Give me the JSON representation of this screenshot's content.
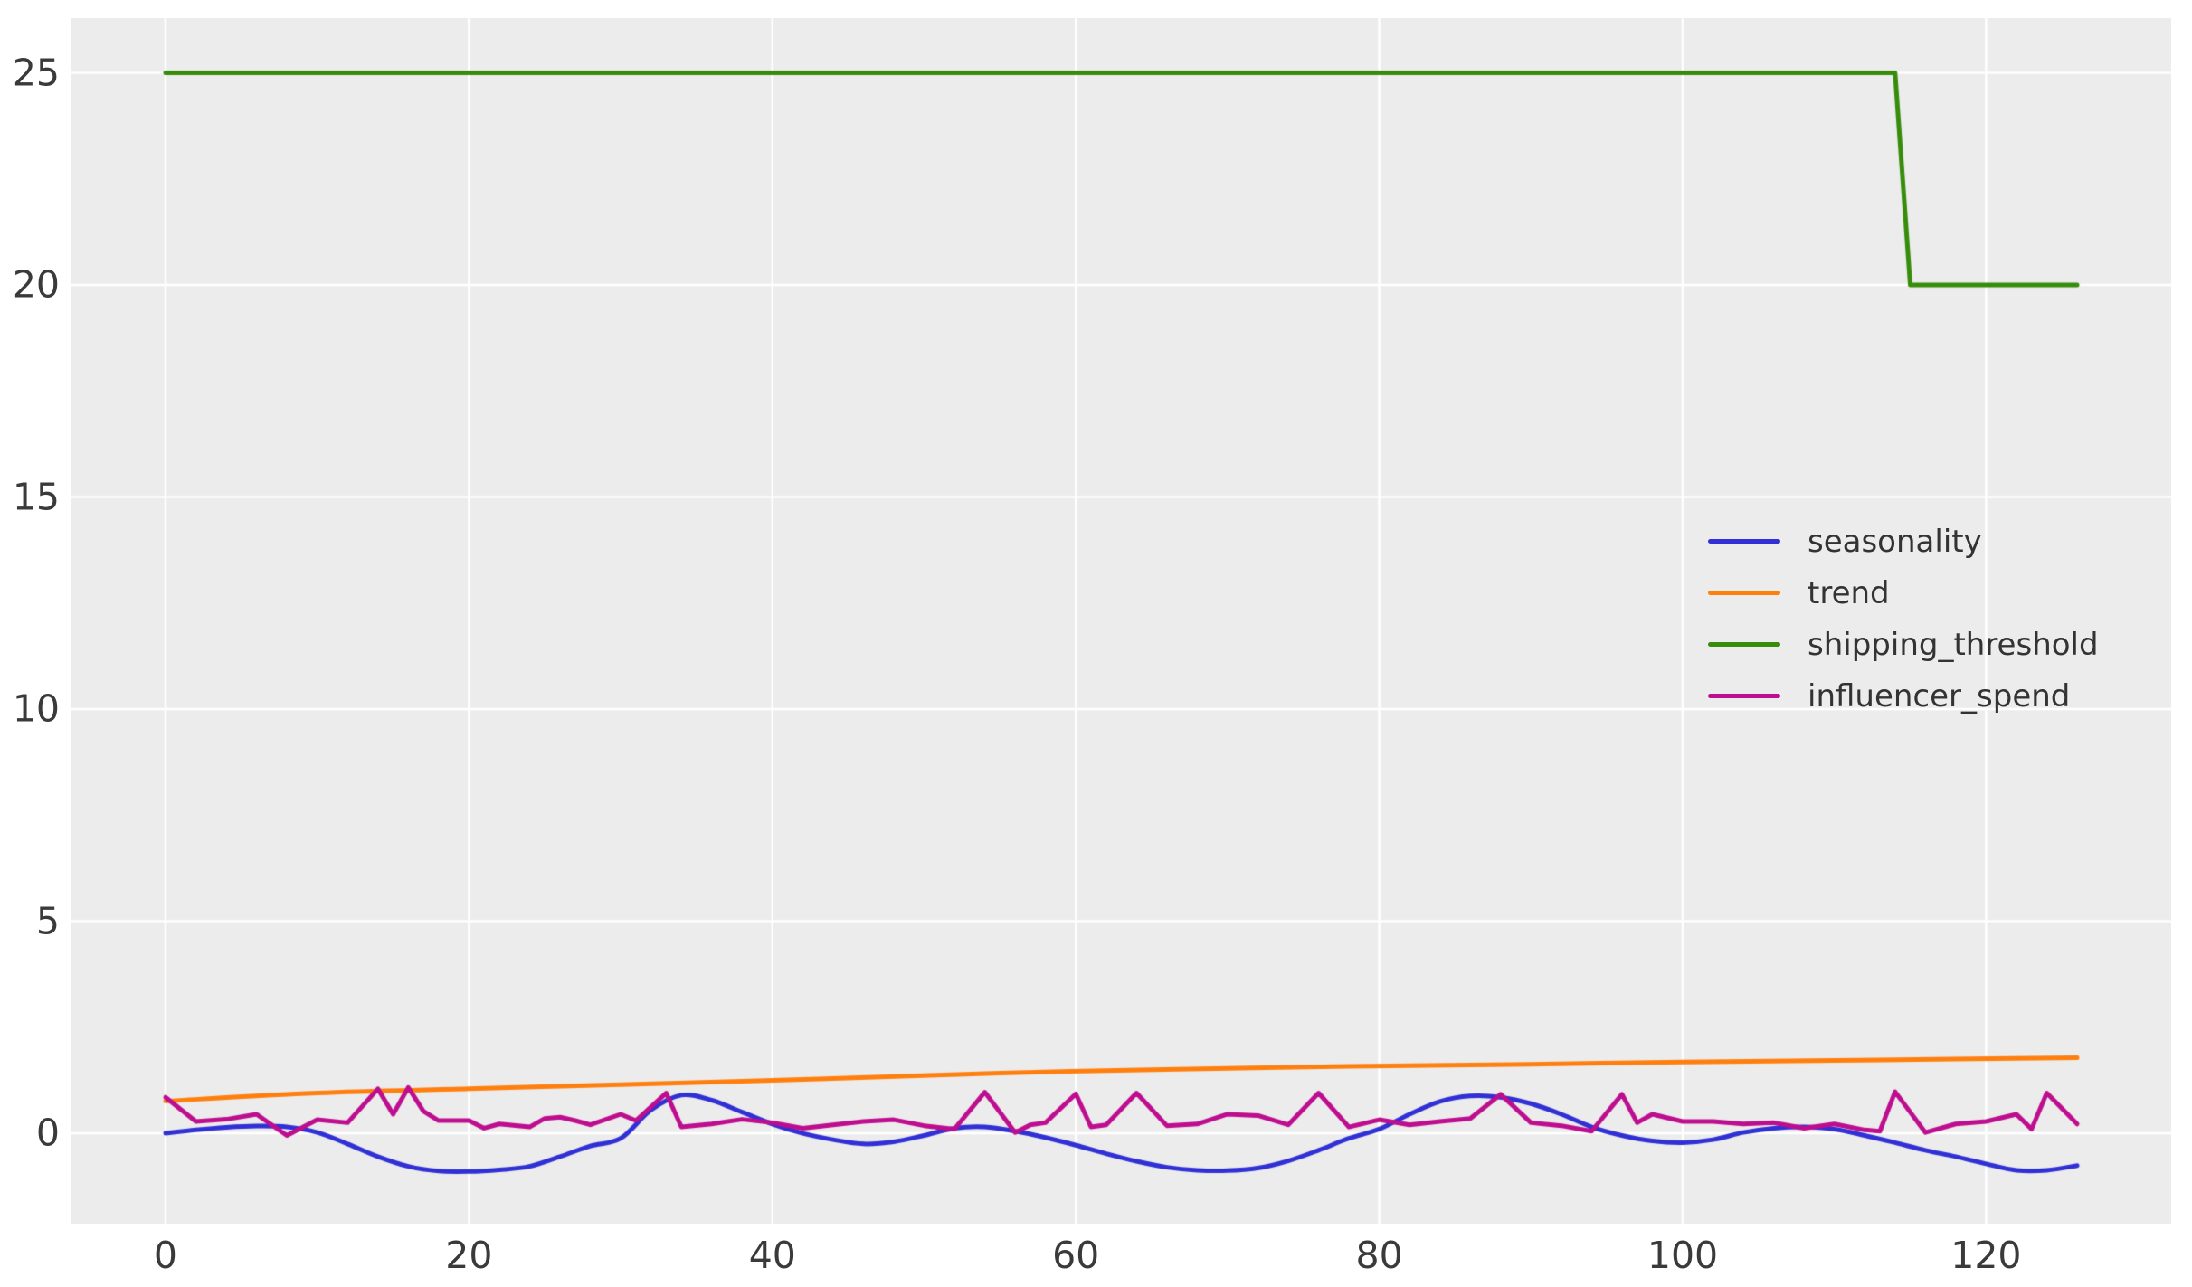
{
  "figure": {
    "background": "#ffffff"
  },
  "axes": {
    "background": "#ececec",
    "grid_color": "#ffffff",
    "grid_linewidth": 2.5,
    "tick_color": "#3a3a3a",
    "line_width": 5
  },
  "chart_data": {
    "type": "line",
    "title": "",
    "xlabel": "",
    "ylabel": "",
    "grid": true,
    "legend_position": "center right",
    "xlim": [
      -6.26,
      132.2
    ],
    "ylim": [
      -2.13,
      26.29
    ],
    "xticks": [
      0,
      20,
      40,
      60,
      80,
      100,
      120
    ],
    "yticks": [
      0,
      5,
      10,
      15,
      20,
      25
    ],
    "series": [
      {
        "name": "seasonality",
        "color": "#3030d6",
        "smooth": true,
        "points": [
          [
            0,
            0.0
          ],
          [
            2,
            0.08
          ],
          [
            4,
            0.14
          ],
          [
            6,
            0.17
          ],
          [
            8,
            0.15
          ],
          [
            10,
            0.02
          ],
          [
            12,
            -0.25
          ],
          [
            14,
            -0.55
          ],
          [
            16,
            -0.78
          ],
          [
            18,
            -0.89
          ],
          [
            20,
            -0.9
          ],
          [
            22,
            -0.86
          ],
          [
            24,
            -0.78
          ],
          [
            26,
            -0.55
          ],
          [
            28,
            -0.3
          ],
          [
            30,
            -0.12
          ],
          [
            32,
            0.55
          ],
          [
            34,
            0.9
          ],
          [
            36,
            0.78
          ],
          [
            38,
            0.5
          ],
          [
            40,
            0.22
          ],
          [
            42,
            0.0
          ],
          [
            44,
            -0.15
          ],
          [
            46,
            -0.25
          ],
          [
            48,
            -0.2
          ],
          [
            50,
            -0.05
          ],
          [
            52,
            0.12
          ],
          [
            54,
            0.15
          ],
          [
            56,
            0.05
          ],
          [
            58,
            -0.1
          ],
          [
            60,
            -0.28
          ],
          [
            62,
            -0.48
          ],
          [
            64,
            -0.66
          ],
          [
            66,
            -0.8
          ],
          [
            68,
            -0.87
          ],
          [
            70,
            -0.88
          ],
          [
            72,
            -0.82
          ],
          [
            74,
            -0.65
          ],
          [
            76,
            -0.4
          ],
          [
            78,
            -0.12
          ],
          [
            80,
            0.1
          ],
          [
            82,
            0.45
          ],
          [
            84,
            0.75
          ],
          [
            86,
            0.88
          ],
          [
            88,
            0.85
          ],
          [
            90,
            0.7
          ],
          [
            92,
            0.45
          ],
          [
            94,
            0.15
          ],
          [
            96,
            -0.05
          ],
          [
            98,
            -0.18
          ],
          [
            100,
            -0.22
          ],
          [
            102,
            -0.15
          ],
          [
            104,
            0.02
          ],
          [
            106,
            0.12
          ],
          [
            108,
            0.15
          ],
          [
            110,
            0.1
          ],
          [
            112,
            -0.05
          ],
          [
            114,
            -0.22
          ],
          [
            116,
            -0.4
          ],
          [
            118,
            -0.55
          ],
          [
            120,
            -0.72
          ],
          [
            122,
            -0.87
          ],
          [
            124,
            -0.87
          ],
          [
            126,
            -0.76
          ]
        ]
      },
      {
        "name": "trend",
        "color": "#ff7f0e",
        "smooth": true,
        "points": [
          [
            0,
            0.76
          ],
          [
            10,
            0.95
          ],
          [
            20,
            1.05
          ],
          [
            30,
            1.15
          ],
          [
            43,
            1.28
          ],
          [
            55,
            1.42
          ],
          [
            65,
            1.5
          ],
          [
            78,
            1.58
          ],
          [
            90,
            1.63
          ],
          [
            100,
            1.68
          ],
          [
            113,
            1.73
          ],
          [
            126,
            1.78
          ]
        ]
      },
      {
        "name": "shipping_threshold",
        "color": "#368c0b",
        "smooth": false,
        "points": [
          [
            0,
            25
          ],
          [
            114,
            25
          ],
          [
            115,
            20
          ],
          [
            126,
            20
          ]
        ]
      },
      {
        "name": "influencer_spend",
        "color": "#be0d8f",
        "smooth": false,
        "points": [
          [
            0,
            0.85
          ],
          [
            2,
            0.28
          ],
          [
            4,
            0.33
          ],
          [
            6,
            0.45
          ],
          [
            8,
            -0.05
          ],
          [
            10,
            0.32
          ],
          [
            12,
            0.25
          ],
          [
            14,
            1.05
          ],
          [
            15,
            0.45
          ],
          [
            16,
            1.08
          ],
          [
            17,
            0.52
          ],
          [
            18,
            0.3
          ],
          [
            20,
            0.3
          ],
          [
            21,
            0.12
          ],
          [
            22,
            0.22
          ],
          [
            24,
            0.15
          ],
          [
            25,
            0.35
          ],
          [
            26,
            0.38
          ],
          [
            27,
            0.3
          ],
          [
            28,
            0.2
          ],
          [
            30,
            0.45
          ],
          [
            31,
            0.3
          ],
          [
            33,
            0.95
          ],
          [
            34,
            0.15
          ],
          [
            36,
            0.22
          ],
          [
            38,
            0.33
          ],
          [
            40,
            0.25
          ],
          [
            42,
            0.12
          ],
          [
            44,
            0.2
          ],
          [
            46,
            0.28
          ],
          [
            48,
            0.32
          ],
          [
            50,
            0.18
          ],
          [
            52,
            0.1
          ],
          [
            54,
            0.97
          ],
          [
            56,
            0.02
          ],
          [
            57,
            0.2
          ],
          [
            58,
            0.25
          ],
          [
            60,
            0.93
          ],
          [
            61,
            0.15
          ],
          [
            62,
            0.2
          ],
          [
            64,
            0.95
          ],
          [
            66,
            0.18
          ],
          [
            68,
            0.22
          ],
          [
            70,
            0.45
          ],
          [
            72,
            0.42
          ],
          [
            74,
            0.2
          ],
          [
            76,
            0.95
          ],
          [
            78,
            0.15
          ],
          [
            80,
            0.32
          ],
          [
            82,
            0.2
          ],
          [
            84,
            0.28
          ],
          [
            86,
            0.35
          ],
          [
            88,
            0.92
          ],
          [
            90,
            0.25
          ],
          [
            92,
            0.18
          ],
          [
            94,
            0.05
          ],
          [
            96,
            0.92
          ],
          [
            97,
            0.25
          ],
          [
            98,
            0.45
          ],
          [
            100,
            0.28
          ],
          [
            102,
            0.28
          ],
          [
            104,
            0.22
          ],
          [
            106,
            0.25
          ],
          [
            108,
            0.12
          ],
          [
            110,
            0.22
          ],
          [
            112,
            0.08
          ],
          [
            113,
            0.05
          ],
          [
            114,
            0.98
          ],
          [
            116,
            0.02
          ],
          [
            118,
            0.22
          ],
          [
            120,
            0.28
          ],
          [
            122,
            0.45
          ],
          [
            123,
            0.1
          ],
          [
            124,
            0.95
          ],
          [
            126,
            0.22
          ]
        ]
      }
    ]
  }
}
